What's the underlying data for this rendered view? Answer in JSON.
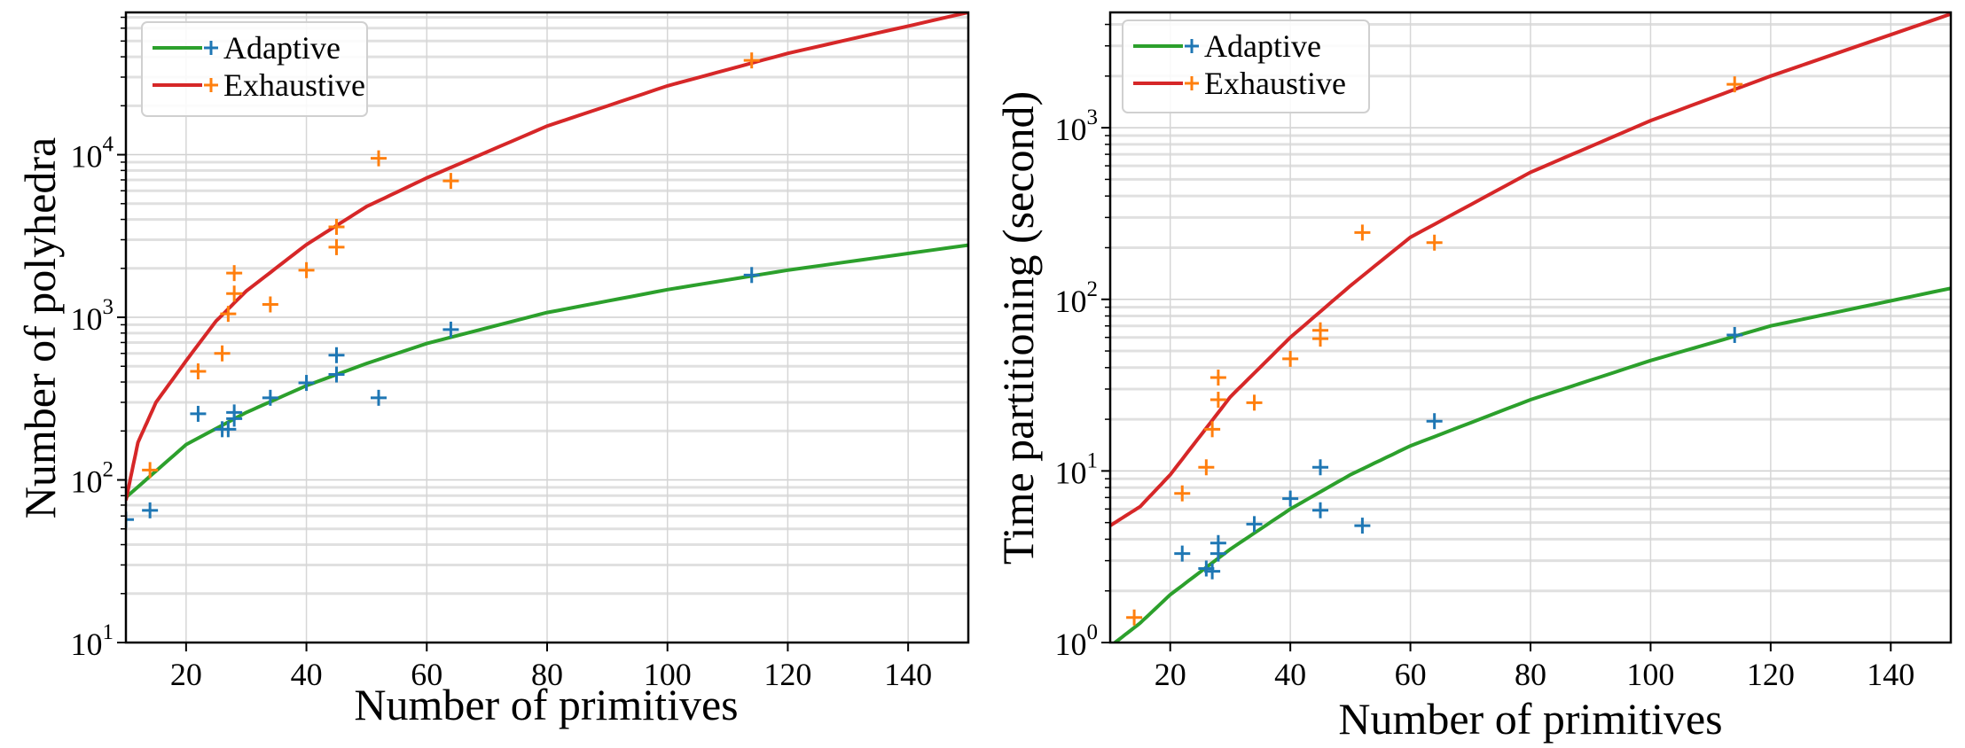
{
  "chart_data": [
    {
      "type": "scatter+line",
      "xlabel": "Number of primitives",
      "ylabel": "Number of polyhedra",
      "xlim": [
        10,
        150
      ],
      "ylim": [
        10,
        75000
      ],
      "yscale": "log",
      "xticks": [
        20,
        40,
        60,
        80,
        100,
        120,
        140
      ],
      "yticks": [
        {
          "base": "10",
          "exp": "1",
          "value": 10
        },
        {
          "base": "10",
          "exp": "2",
          "value": 100
        },
        {
          "base": "10",
          "exp": "3",
          "value": 1000
        },
        {
          "base": "10",
          "exp": "4",
          "value": 10000
        }
      ],
      "grid": true,
      "legend": "top-left",
      "series": [
        {
          "name": "Adaptive",
          "marker_color": "#1f77b4",
          "line_color": "#2ca02c",
          "points": [
            [
              10,
              57
            ],
            [
              14,
              65
            ],
            [
              22,
              255
            ],
            [
              26,
              205
            ],
            [
              27,
              205
            ],
            [
              28,
              260
            ],
            [
              28,
              238
            ],
            [
              34,
              320
            ],
            [
              40,
              395
            ],
            [
              45,
              585
            ],
            [
              45,
              445
            ],
            [
              52,
              320
            ],
            [
              64,
              840
            ],
            [
              114,
              1820
            ]
          ],
          "fit": [
            [
              10,
              78
            ],
            [
              20,
              165
            ],
            [
              30,
              260
            ],
            [
              40,
              380
            ],
            [
              50,
              520
            ],
            [
              60,
              690
            ],
            [
              80,
              1070
            ],
            [
              100,
              1480
            ],
            [
              120,
              1950
            ],
            [
              150,
              2780
            ]
          ]
        },
        {
          "name": "Exhaustive",
          "marker_color": "#ff7f0e",
          "line_color": "#d62728",
          "points": [
            [
              14,
              115
            ],
            [
              22,
              465
            ],
            [
              26,
              600
            ],
            [
              27,
              1050
            ],
            [
              28,
              1400
            ],
            [
              28,
              1870
            ],
            [
              34,
              1200
            ],
            [
              40,
              1950
            ],
            [
              45,
              2700
            ],
            [
              45,
              3600
            ],
            [
              52,
              9500
            ],
            [
              64,
              6900
            ],
            [
              114,
              38000
            ]
          ],
          "fit": [
            [
              10,
              75
            ],
            [
              12,
              170
            ],
            [
              15,
              300
            ],
            [
              20,
              540
            ],
            [
              25,
              950
            ],
            [
              30,
              1450
            ],
            [
              40,
              2800
            ],
            [
              50,
              4800
            ],
            [
              60,
              7200
            ],
            [
              80,
              15000
            ],
            [
              100,
              26500
            ],
            [
              120,
              42000
            ],
            [
              150,
              75000
            ]
          ]
        }
      ]
    },
    {
      "type": "scatter+line",
      "xlabel": "Number of primitives",
      "ylabel": "Time partitioning (second)",
      "xlim": [
        10,
        150
      ],
      "ylim": [
        1,
        4700
      ],
      "yscale": "log",
      "xticks": [
        20,
        40,
        60,
        80,
        100,
        120,
        140
      ],
      "yticks": [
        {
          "base": "10",
          "exp": "0",
          "value": 1
        },
        {
          "base": "10",
          "exp": "1",
          "value": 10
        },
        {
          "base": "10",
          "exp": "2",
          "value": 100
        },
        {
          "base": "10",
          "exp": "3",
          "value": 1000
        }
      ],
      "grid": true,
      "legend": "top-left",
      "series": [
        {
          "name": "Adaptive",
          "marker_color": "#1f77b4",
          "line_color": "#2ca02c",
          "points": [
            [
              22,
              3.3
            ],
            [
              26,
              2.7
            ],
            [
              27,
              2.6
            ],
            [
              28,
              3.8
            ],
            [
              28,
              3.3
            ],
            [
              34,
              4.9
            ],
            [
              40,
              6.9
            ],
            [
              45,
              10.5
            ],
            [
              45,
              5.9
            ],
            [
              52,
              4.8
            ],
            [
              64,
              19.5
            ],
            [
              114,
              62
            ]
          ],
          "fit": [
            [
              10,
              0.95
            ],
            [
              15,
              1.3
            ],
            [
              20,
              1.9
            ],
            [
              30,
              3.5
            ],
            [
              40,
              6
            ],
            [
              50,
              9.5
            ],
            [
              60,
              14
            ],
            [
              80,
              26
            ],
            [
              100,
              44
            ],
            [
              120,
              70
            ],
            [
              150,
              116
            ]
          ]
        },
        {
          "name": "Exhaustive",
          "marker_color": "#ff7f0e",
          "line_color": "#d62728",
          "points": [
            [
              14,
              1.4
            ],
            [
              22,
              7.4
            ],
            [
              26,
              10.5
            ],
            [
              27,
              17.5
            ],
            [
              28,
              26
            ],
            [
              28,
              35
            ],
            [
              34,
              25
            ],
            [
              40,
              45
            ],
            [
              45,
              59
            ],
            [
              45,
              66
            ],
            [
              52,
              245
            ],
            [
              64,
              214
            ],
            [
              114,
              1790
            ]
          ],
          "fit": [
            [
              10,
              4.8
            ],
            [
              15,
              6.2
            ],
            [
              20,
              9.5
            ],
            [
              25,
              16
            ],
            [
              30,
              27
            ],
            [
              40,
              60
            ],
            [
              50,
              120
            ],
            [
              60,
              230
            ],
            [
              80,
              550
            ],
            [
              100,
              1100
            ],
            [
              120,
              2000
            ],
            [
              150,
              4600
            ]
          ]
        }
      ]
    }
  ]
}
